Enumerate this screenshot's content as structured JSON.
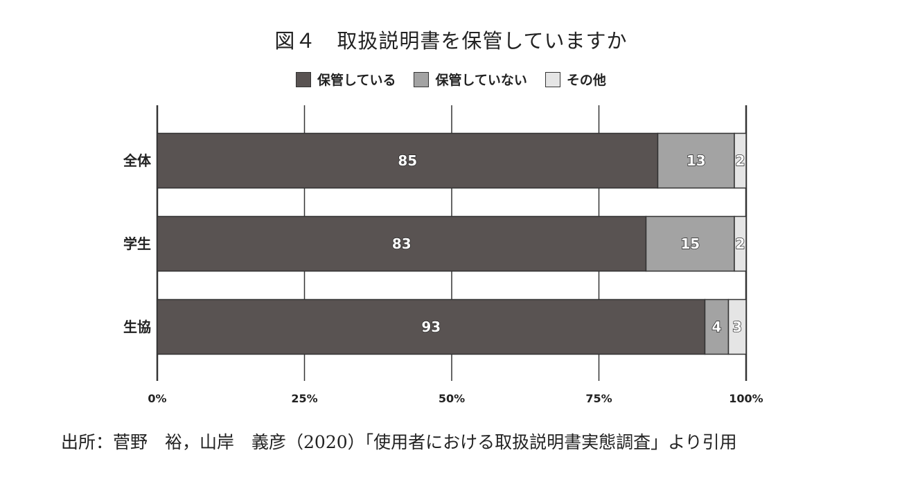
{
  "title": "図４　取扱説明書を保管していますか",
  "source": "出所：菅野　裕，山岸　義彦（2020）「使用者における取扱説明書実態調査」より引用",
  "chart_data": {
    "type": "bar",
    "orientation": "horizontal",
    "stacked": true,
    "categories": [
      "全体",
      "学生",
      "生協"
    ],
    "series": [
      {
        "name": "保管している",
        "values": [
          85,
          83,
          93
        ],
        "color": "#595352"
      },
      {
        "name": "保管していない",
        "values": [
          13,
          15,
          4
        ],
        "color": "#a3a3a3"
      },
      {
        "name": "その他",
        "values": [
          2,
          2,
          3
        ],
        "color": "#e5e5e5"
      }
    ],
    "x_ticks": [
      "0%",
      "25%",
      "50%",
      "75%",
      "100%"
    ],
    "xlim": [
      0,
      100
    ],
    "grid": true,
    "legend_position": "top"
  }
}
